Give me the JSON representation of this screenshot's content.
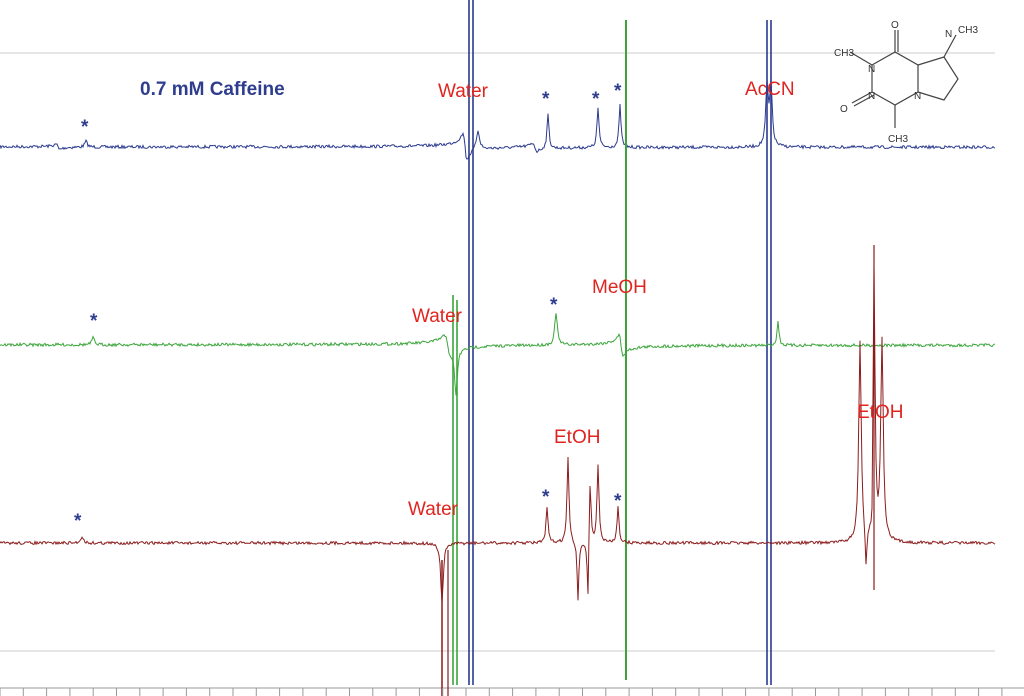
{
  "title": "0.7 mM Caffeine",
  "annotations": [
    "Water",
    "AcCN",
    "Water",
    "MeOH",
    "EtOH",
    "Water",
    "EtOH"
  ],
  "markers": [
    "*",
    "*",
    "*",
    "*",
    "*",
    "*",
    "*",
    "*",
    "*"
  ],
  "structure_labels": [
    "N",
    "N",
    "N",
    "N",
    "O",
    "O",
    "CH3",
    "CH3",
    "CH3"
  ]
}
